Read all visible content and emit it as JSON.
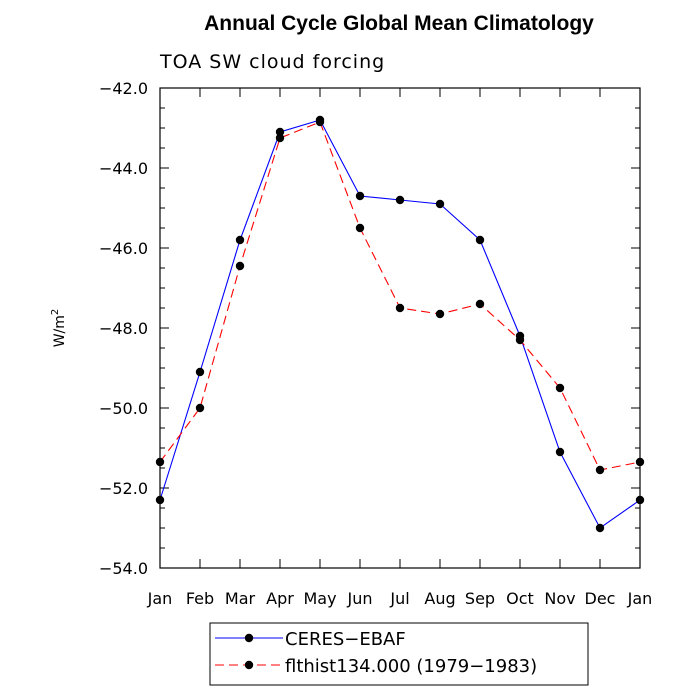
{
  "chart_data": {
    "type": "line",
    "title": "Annual Cycle Global Mean Climatology",
    "subtitle": "TOA SW cloud forcing",
    "ylabel_base": "W/m",
    "ylabel_sup": "2",
    "categories": [
      "Jan",
      "Feb",
      "Mar",
      "Apr",
      "May",
      "Jun",
      "Jul",
      "Aug",
      "Sep",
      "Oct",
      "Nov",
      "Dec",
      "Jan"
    ],
    "ylim": [
      -54,
      -42
    ],
    "yticks": [
      -42,
      -44,
      -46,
      -48,
      -50,
      -52,
      -54
    ],
    "ytick_labels": [
      "−42.0",
      "−44.0",
      "−46.0",
      "−48.0",
      "−50.0",
      "−52.0",
      "−54.0"
    ],
    "series": [
      {
        "name": "CERES−EBAF",
        "color": "#0000ff",
        "dash": "solid",
        "values": [
          -52.3,
          -49.1,
          -45.8,
          -43.1,
          -42.8,
          -44.7,
          -44.8,
          -44.9,
          -45.8,
          -48.2,
          -51.1,
          -53.0,
          -52.3
        ]
      },
      {
        "name": "flthist134.000 (1979−1983)",
        "color": "#ff0000",
        "dash": "dashed",
        "values": [
          -51.35,
          -50.0,
          -46.45,
          -43.25,
          -42.85,
          -45.5,
          -47.5,
          -47.65,
          -47.4,
          -48.3,
          -49.5,
          -51.55,
          -51.35
        ]
      }
    ],
    "marker_color": "#000000",
    "grid": false,
    "legend_position": "bottom"
  }
}
